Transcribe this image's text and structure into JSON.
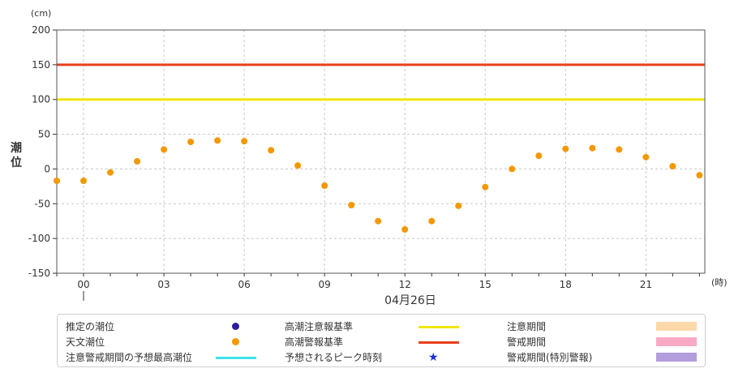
{
  "chart_data": {
    "type": "scatter",
    "ylabel": "潮位",
    "y_unit": "(cm)",
    "x_unit": "(時)",
    "date_label": "04月26日",
    "ylim": [
      -150,
      200
    ],
    "y_ticks": [
      200,
      150,
      100,
      50,
      0,
      -50,
      -100,
      -150
    ],
    "xlim": [
      -1,
      23.2
    ],
    "x_ticks": [
      {
        "value": 0,
        "label": "00"
      },
      {
        "value": 3,
        "label": "03"
      },
      {
        "value": 6,
        "label": "06"
      },
      {
        "value": 9,
        "label": "09"
      },
      {
        "value": 12,
        "label": "12"
      },
      {
        "value": 15,
        "label": "15"
      },
      {
        "value": 18,
        "label": "18"
      },
      {
        "value": 21,
        "label": "21"
      }
    ],
    "grid": true,
    "reference_lines": [
      {
        "name": "高潮警報基準",
        "value": 150,
        "color": "#e8401c"
      },
      {
        "name": "高潮注意報基準",
        "value": 100,
        "color": "#f0e600"
      }
    ],
    "series": [
      {
        "name": "天文潮位",
        "color": "#f39800",
        "x": [
          -1,
          0,
          1,
          2,
          3,
          4,
          5,
          6,
          7,
          8,
          9,
          10,
          11,
          12,
          13,
          14,
          15,
          16,
          17,
          18,
          19,
          20,
          21,
          22,
          23
        ],
        "values": [
          -17,
          -17,
          -5,
          11,
          28,
          39,
          41,
          40,
          27,
          5,
          -24,
          -52,
          -75,
          -87,
          -75,
          -53,
          -26,
          0,
          19,
          29,
          30,
          28,
          17,
          4,
          -9
        ]
      }
    ]
  },
  "legend": {
    "items": [
      {
        "label": "推定の潮位",
        "symbol": "dot",
        "color": "#2b1d9b"
      },
      {
        "label": "高潮注意報基準",
        "symbol": "line",
        "color": "#f0e600"
      },
      {
        "label": "注意期間",
        "symbol": "swatch",
        "color": "#fcd9a9"
      },
      {
        "label": "天文潮位",
        "symbol": "dot",
        "color": "#f39800"
      },
      {
        "label": "高潮警報基準",
        "symbol": "line",
        "color": "#e8401c"
      },
      {
        "label": "警戒期間",
        "symbol": "swatch",
        "color": "#f8aac5"
      },
      {
        "label": "注意警戒期間の予想最高潮位",
        "symbol": "line",
        "color": "#3de3e8"
      },
      {
        "label": "予想されるピーク時刻",
        "symbol": "star",
        "glyph": "★",
        "color": "#1a2fd1"
      },
      {
        "label": "警戒期間(特別警報)",
        "symbol": "swatch",
        "color": "#b39ddd"
      }
    ]
  }
}
